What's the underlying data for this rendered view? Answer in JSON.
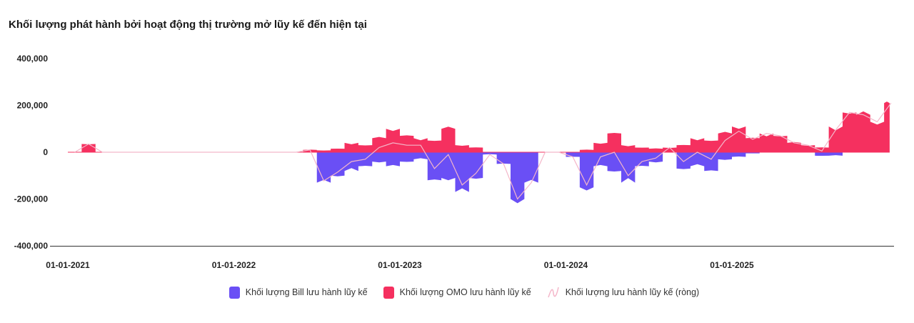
{
  "chart_data": {
    "type": "area",
    "title": "Khối lượng phát hành bởi hoạt động thị trường mở lũy kế đến hiện tại",
    "xlabel": "",
    "ylabel": "",
    "ylim": [
      -400000,
      400000
    ],
    "yticks": [
      "400,000",
      "200,000",
      "0",
      "-200,000",
      "-400,000"
    ],
    "ytick_values": [
      400000,
      200000,
      0,
      -200000,
      -400000
    ],
    "xticks": [
      "01-01-2021",
      "01-01-2022",
      "01-01-2023",
      "01-01-2024",
      "01-01-2025"
    ],
    "xtick_values": [
      2021,
      2022,
      2023,
      2024,
      2025
    ],
    "x_range": [
      2021.0,
      2025.95
    ],
    "x": [
      "2021-01",
      "2021-02",
      "2021-03",
      "2021-04",
      "2021-05",
      "2021-06",
      "2021-07",
      "2021-08",
      "2021-09",
      "2021-10",
      "2021-11",
      "2021-12",
      "2022-01",
      "2022-02",
      "2022-03",
      "2022-04",
      "2022-05",
      "2022-06",
      "2022-07",
      "2022-08",
      "2022-09",
      "2022-10",
      "2022-11",
      "2022-12",
      "2023-01",
      "2023-02",
      "2023-03",
      "2023-04",
      "2023-05",
      "2023-06",
      "2023-07",
      "2023-08",
      "2023-09",
      "2023-10",
      "2023-11",
      "2023-12",
      "2024-01",
      "2024-02",
      "2024-03",
      "2024-04",
      "2024-05",
      "2024-06",
      "2024-07",
      "2024-08",
      "2024-09",
      "2024-10",
      "2024-11",
      "2024-12",
      "2025-01",
      "2025-02",
      "2025-03",
      "2025-04",
      "2025-05",
      "2025-06",
      "2025-07",
      "2025-08",
      "2025-09",
      "2025-10",
      "2025-11",
      "2025-12"
    ],
    "series": [
      {
        "name": "Khối lượng Bill lưu hành lũy kế",
        "color": "#6a4ff5",
        "type": "area",
        "values": [
          0,
          0,
          0,
          0,
          0,
          0,
          0,
          0,
          0,
          0,
          0,
          0,
          0,
          0,
          0,
          0,
          0,
          0,
          -130000,
          -100000,
          -80000,
          -60000,
          -40000,
          -60000,
          -40000,
          -30000,
          -120000,
          -110000,
          -170000,
          -110000,
          -10000,
          -50000,
          -200000,
          -130000,
          0,
          0,
          -20000,
          -150000,
          -60000,
          -80000,
          -130000,
          -60000,
          -40000,
          0,
          -70000,
          -60000,
          -80000,
          -30000,
          -20000,
          -5000,
          0,
          0,
          0,
          0,
          -15000,
          -15000,
          0,
          0,
          0,
          0
        ]
      },
      {
        "name": "Khối lượng OMO lưu hành lũy kế",
        "color": "#f5305f",
        "type": "area",
        "values": [
          0,
          35000,
          0,
          0,
          0,
          0,
          0,
          0,
          0,
          0,
          0,
          0,
          0,
          0,
          0,
          0,
          0,
          10000,
          8000,
          15000,
          40000,
          30000,
          60000,
          100000,
          70000,
          60000,
          50000,
          100000,
          30000,
          20000,
          0,
          0,
          0,
          0,
          0,
          0,
          0,
          10000,
          40000,
          80000,
          30000,
          20000,
          15000,
          20000,
          30000,
          60000,
          50000,
          80000,
          110000,
          60000,
          80000,
          70000,
          40000,
          30000,
          20000,
          110000,
          170000,
          160000,
          130000,
          210000
        ]
      },
      {
        "name": "Khối lượng lưu hành lũy kế (ròng)",
        "color": "#f4b6c9",
        "type": "line"
      }
    ]
  }
}
